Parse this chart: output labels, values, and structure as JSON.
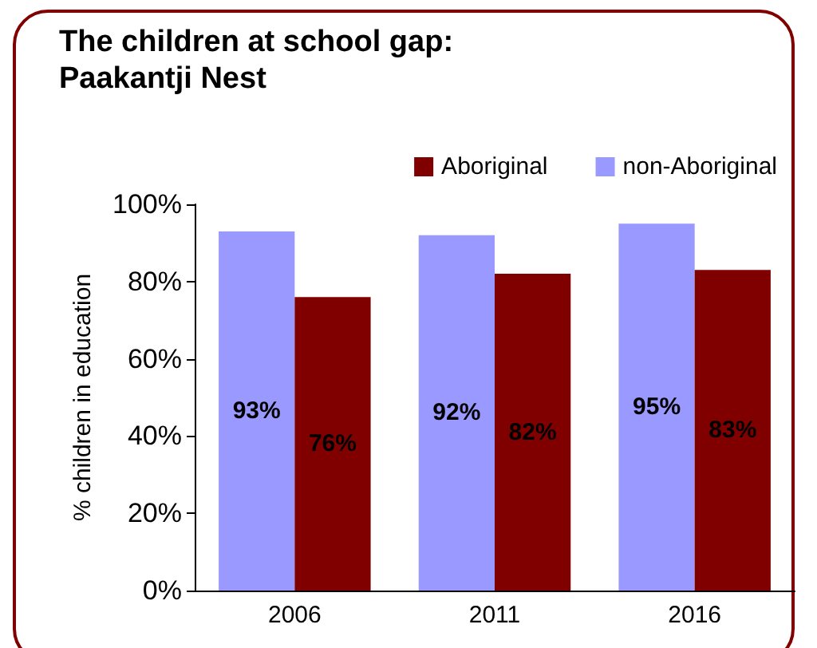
{
  "chart_data": {
    "type": "bar",
    "title": "The children at school gap:",
    "subtitle": "Paakantji Nest",
    "ylabel": "% children in education",
    "categories": [
      "2006",
      "2011",
      "2016"
    ],
    "series": [
      {
        "name": "non-Aboriginal",
        "color": "#9999ff",
        "values": [
          93,
          92,
          95
        ],
        "value_labels": [
          "93%",
          "92%",
          "95%"
        ]
      },
      {
        "name": "Aboriginal",
        "color": "#800000",
        "values": [
          76,
          82,
          83
        ],
        "value_labels": [
          "76%",
          "82%",
          "83%"
        ]
      }
    ],
    "ylim": [
      0,
      100
    ],
    "yticks": [
      {
        "value": 0,
        "label": "0%"
      },
      {
        "value": 20,
        "label": "20%"
      },
      {
        "value": 40,
        "label": "40%"
      },
      {
        "value": 60,
        "label": "60%"
      },
      {
        "value": 80,
        "label": "80%"
      },
      {
        "value": 100,
        "label": "100%"
      }
    ],
    "grid": false,
    "legend": "top right"
  }
}
